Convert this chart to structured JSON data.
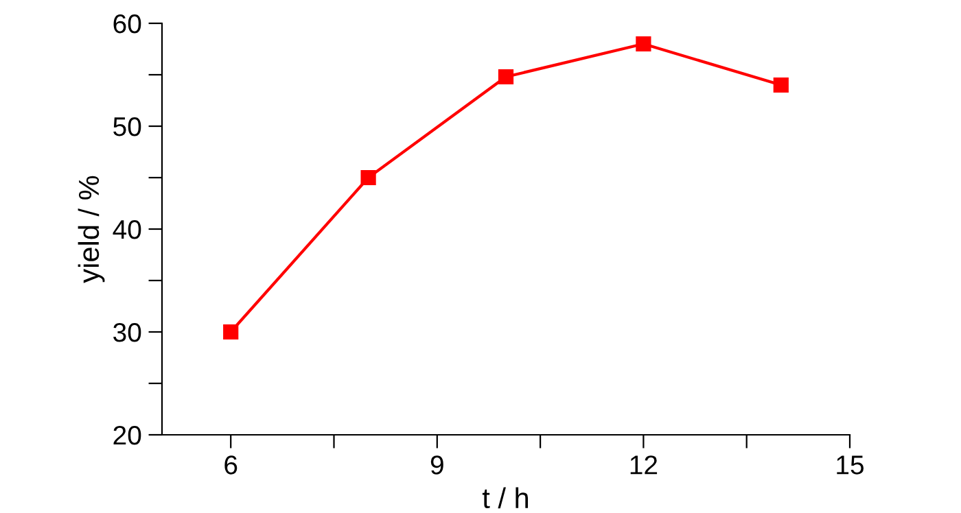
{
  "chart_data": {
    "type": "line",
    "xlabel": "t / h",
    "ylabel": "yield / %",
    "x": [
      6,
      8,
      10,
      12,
      14
    ],
    "series": [
      {
        "color": "#ff0000",
        "values": [
          30,
          45,
          54.8,
          58,
          54
        ]
      }
    ],
    "marker": "square",
    "line_style": "solid",
    "grid": false,
    "legend": false,
    "xlim": [
      5,
      15
    ],
    "ylim": [
      20,
      60
    ],
    "xticks": [
      6,
      {
        "value": 7.5,
        "label": null
      },
      9,
      {
        "value": 10.5,
        "label": null
      },
      12,
      {
        "value": 13.5,
        "label": null
      },
      15
    ],
    "yticks": [
      20,
      {
        "value": 25,
        "label": null
      },
      30,
      {
        "value": 35,
        "label": null
      },
      40,
      {
        "value": 45,
        "label": null
      },
      50,
      {
        "value": 55,
        "label": null
      },
      60
    ]
  }
}
